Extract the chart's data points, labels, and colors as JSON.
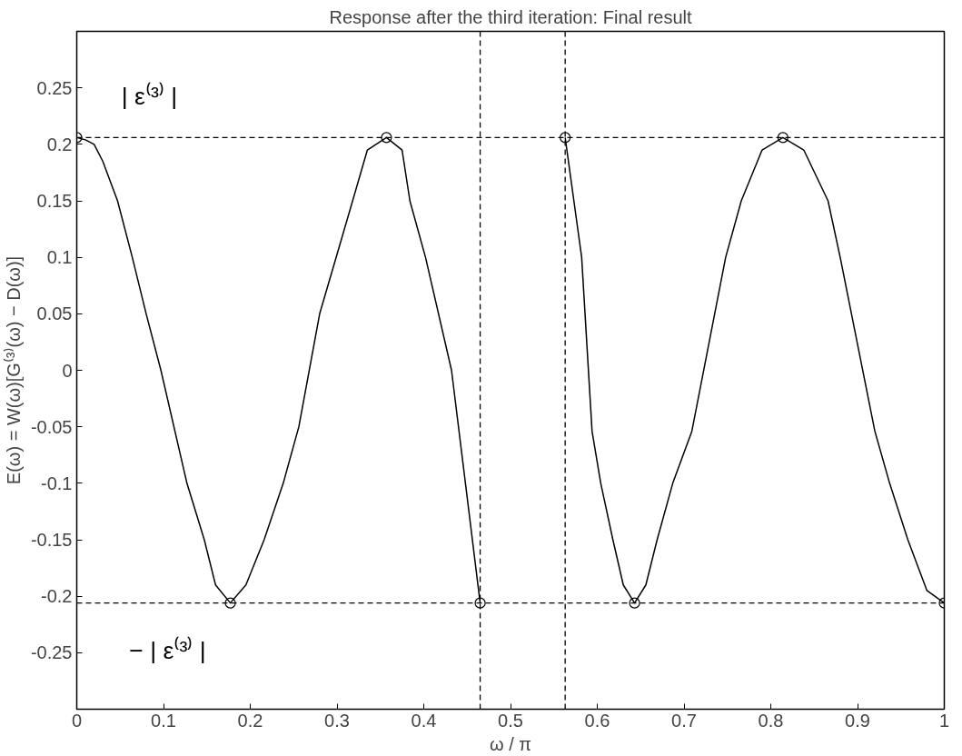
{
  "chart_data": {
    "type": "line",
    "title": "Response after the third iteration: Final result",
    "xlabel": "ω / π",
    "ylabel": "E(ω) = W(ω)[G⁽³⁾(ω) − D(ω)]",
    "xlim": [
      0,
      1
    ],
    "ylim": [
      -0.3,
      0.3
    ],
    "xticks": [
      0,
      0.1,
      0.2,
      0.3,
      0.4,
      0.5,
      0.6,
      0.7,
      0.8,
      0.9,
      1
    ],
    "yticks": [
      -0.25,
      -0.2,
      -0.15,
      -0.1,
      -0.05,
      0,
      0.05,
      0.1,
      0.15,
      0.2,
      0.25
    ],
    "grid": false,
    "line_style": "solid",
    "series": [
      {
        "color": "#000000",
        "x": [
          0,
          0.01,
          0.02,
          0.03,
          0.047,
          0.064,
          0.08,
          0.097,
          0.127,
          0.147,
          0.16,
          0.177,
          0.195,
          0.216,
          0.238,
          0.256,
          0.28,
          0.299,
          0.318,
          0.335,
          0.357,
          0.375,
          0.384,
          0.402,
          0.432,
          0.465,
          null,
          0.563,
          0.582,
          0.594,
          0.604,
          0.618,
          0.63,
          0.643,
          0.656,
          0.669,
          0.687,
          0.709,
          0.748,
          0.766,
          0.79,
          0.814,
          0.838,
          0.866,
          0.88,
          0.92,
          0.937,
          0.958,
          0.98,
          1
        ],
        "values": [
          0.206,
          0.204,
          0.2,
          0.185,
          0.15,
          0.1,
          0.05,
          0,
          -0.1,
          -0.15,
          -0.19,
          -0.206,
          -0.19,
          -0.15,
          -0.1,
          -0.05,
          0.05,
          0.1,
          0.15,
          0.195,
          0.206,
          0.195,
          0.15,
          0.1,
          0,
          -0.206,
          null,
          0.206,
          0.1,
          -0.054,
          -0.1,
          -0.15,
          -0.19,
          -0.206,
          -0.19,
          -0.15,
          -0.1,
          -0.054,
          0.1,
          0.15,
          0.195,
          0.206,
          0.195,
          0.15,
          0.1,
          -0.054,
          -0.1,
          -0.15,
          -0.195,
          -0.206
        ]
      },
      {
        "type": "scatter",
        "marker": "circle",
        "color": "#000000",
        "x": [
          0,
          0.177,
          0.357,
          0.465,
          0.563,
          0.643,
          0.814,
          1
        ],
        "values": [
          0.206,
          -0.206,
          0.206,
          -0.206,
          0.206,
          -0.206,
          0.206,
          -0.206
        ]
      }
    ],
    "ref_lines": [
      {
        "axis": "y",
        "value": 0.206,
        "line_style": "dashed",
        "color": "#000000"
      },
      {
        "axis": "y",
        "value": -0.206,
        "line_style": "dashed",
        "color": "#000000"
      },
      {
        "axis": "x",
        "value": 0.465,
        "line_style": "dashed",
        "color": "#000000"
      },
      {
        "axis": "x",
        "value": 0.563,
        "line_style": "dashed",
        "color": "#000000"
      }
    ],
    "annotations": [
      "| ε⁽³⁾ |",
      "− | ε⁽³⁾ |"
    ]
  }
}
